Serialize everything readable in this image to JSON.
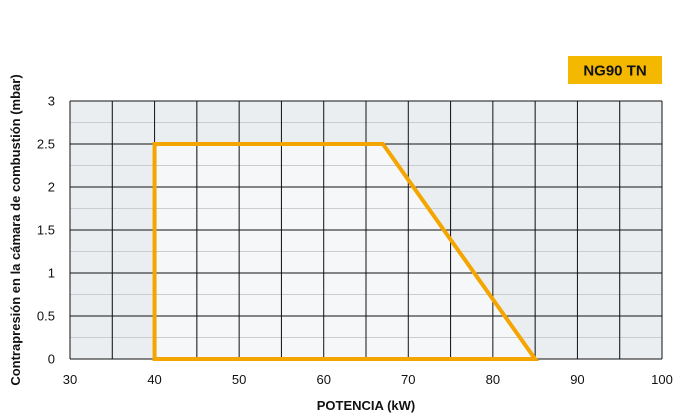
{
  "chart_data": {
    "type": "area",
    "title": "",
    "badge": "NG90 TN",
    "xlabel": "POTENCIA (kW)",
    "ylabel": "Contrapresión en la cámara de combustión (mbar)",
    "xlim": [
      30,
      100
    ],
    "ylim": [
      0,
      3
    ],
    "x_ticks": [
      30,
      40,
      50,
      60,
      70,
      80,
      90,
      100
    ],
    "y_ticks": [
      0,
      0.5,
      1,
      1.5,
      2,
      2.5,
      3
    ],
    "grid": true,
    "series": [
      {
        "x": [
          40,
          40,
          67,
          85,
          40
        ],
        "y": [
          0,
          2.5,
          2.5,
          0,
          0
        ]
      }
    ],
    "colors": {
      "outline": "#f5a500",
      "badge_bg": "#f5b800",
      "region_fill": "#f6f7f9",
      "outside_fill": "#ebeef1",
      "major_grid": "#111111",
      "minor_grid": "#c8cdd2"
    }
  }
}
